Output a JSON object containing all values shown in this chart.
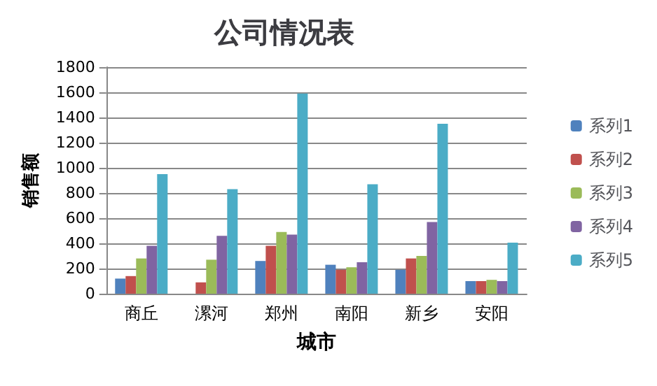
{
  "chart_data": {
    "type": "bar",
    "title": "公司情况表",
    "xlabel": "城市",
    "ylabel": "销售额",
    "categories": [
      "商丘",
      "漯河",
      "郑州",
      "南阳",
      "新乡",
      "安阳"
    ],
    "series": [
      {
        "name": "系列1",
        "color": "#4f81bd",
        "values": [
          120,
          0,
          260,
          230,
          190,
          100
        ]
      },
      {
        "name": "系列2",
        "color": "#c0504d",
        "values": [
          140,
          90,
          380,
          190,
          280,
          100
        ]
      },
      {
        "name": "系列3",
        "color": "#9bbb59",
        "values": [
          280,
          270,
          490,
          210,
          300,
          110
        ]
      },
      {
        "name": "系列4",
        "color": "#8064a2",
        "values": [
          380,
          460,
          470,
          250,
          570,
          100
        ]
      },
      {
        "name": "系列5",
        "color": "#4bacc6",
        "values": [
          950,
          830,
          1590,
          870,
          1350,
          405
        ]
      }
    ],
    "ylim": [
      0,
      1800
    ],
    "yticks": [
      0,
      200,
      400,
      600,
      800,
      1000,
      1200,
      1400,
      1600,
      1800
    ],
    "grid": "y",
    "legend": "right"
  }
}
